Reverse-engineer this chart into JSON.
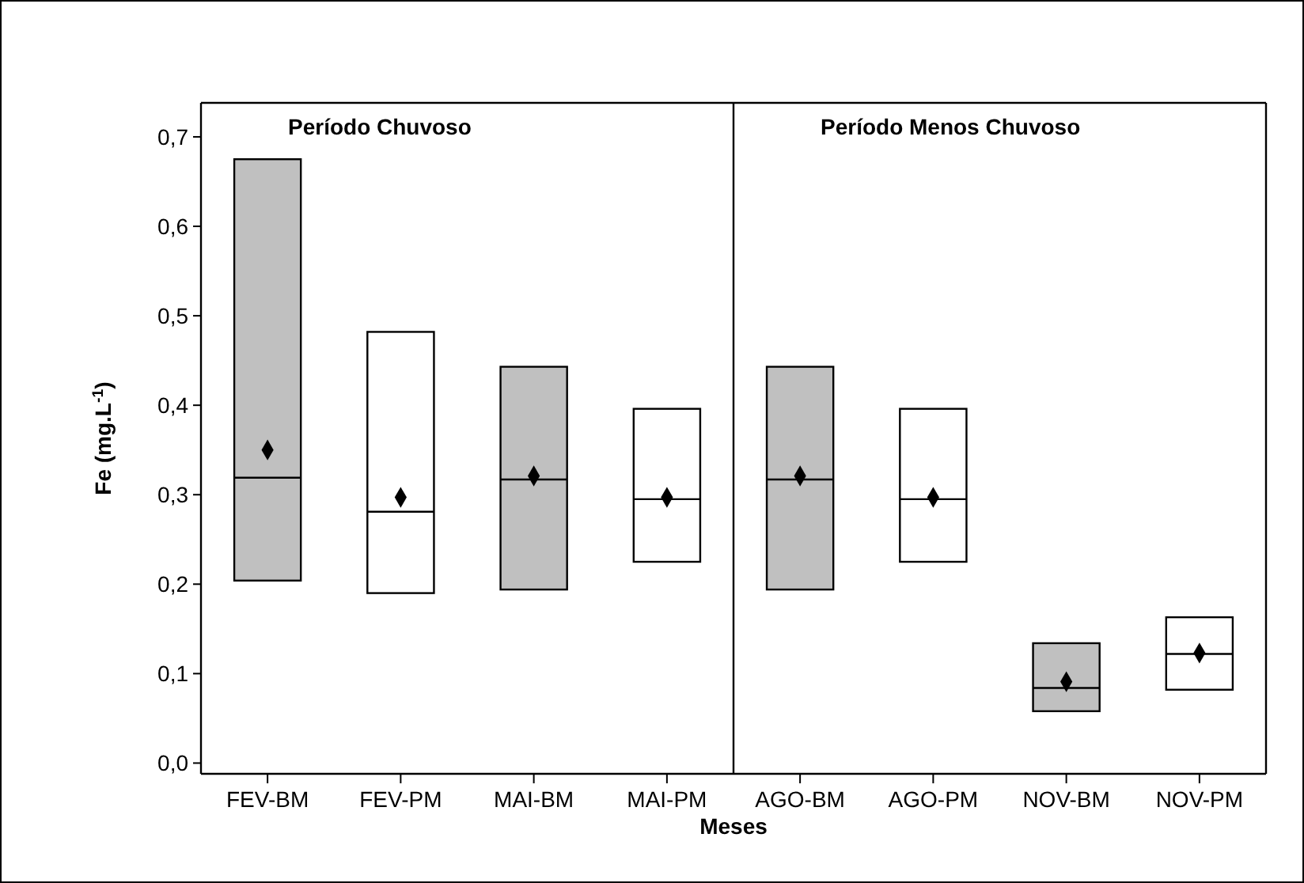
{
  "chart_data": {
    "type": "box",
    "xlabel": "Meses",
    "ylabel": "Fe (mg.L$^{-1}$)",
    "categories": [
      "FEV-BM",
      "FEV-PM",
      "MAI-BM",
      "MAI-PM",
      "AGO-BM",
      "AGO-PM",
      "NOV-BM",
      "NOV-PM"
    ],
    "colors": [
      "#c0c0c0",
      "#ffffff",
      "#c0c0c0",
      "#ffffff",
      "#c0c0c0",
      "#ffffff",
      "#c0c0c0",
      "#ffffff"
    ],
    "boxes": [
      {
        "low": 0.204,
        "q1": 0.204,
        "median": 0.319,
        "q3": 0.675,
        "high": 0.675,
        "mean": 0.35
      },
      {
        "low": 0.19,
        "q1": 0.19,
        "median": 0.281,
        "q3": 0.482,
        "high": 0.482,
        "mean": 0.297
      },
      {
        "low": 0.194,
        "q1": 0.194,
        "median": 0.317,
        "q3": 0.443,
        "high": 0.443,
        "mean": 0.321
      },
      {
        "low": 0.225,
        "q1": 0.225,
        "median": 0.295,
        "q3": 0.396,
        "high": 0.396,
        "mean": 0.297
      },
      {
        "low": 0.194,
        "q1": 0.194,
        "median": 0.317,
        "q3": 0.443,
        "high": 0.443,
        "mean": 0.321
      },
      {
        "low": 0.225,
        "q1": 0.225,
        "median": 0.295,
        "q3": 0.396,
        "high": 0.396,
        "mean": 0.297
      },
      {
        "low": 0.058,
        "q1": 0.058,
        "median": 0.084,
        "q3": 0.134,
        "high": 0.134,
        "mean": 0.091
      },
      {
        "low": 0.082,
        "q1": 0.082,
        "median": 0.122,
        "q3": 0.163,
        "high": 0.163,
        "mean": 0.123
      }
    ],
    "marker": "diamond",
    "ylim": [
      -0.012,
      0.738
    ],
    "yticks": [
      {
        "value": 0,
        "label": "0,0"
      },
      {
        "value": 0.1,
        "label": "0,1"
      },
      {
        "value": 0.2,
        "label": "0,2"
      },
      {
        "value": 0.3,
        "label": "0,3"
      },
      {
        "value": 0.4,
        "label": "0,4"
      },
      {
        "value": 0.5,
        "label": "0,5"
      },
      {
        "value": 0.6,
        "label": "0,6"
      },
      {
        "value": 0.7,
        "label": "0,7"
      }
    ],
    "annotations": [
      "Período Chuvoso",
      "Período Menos Chuvoso"
    ]
  }
}
